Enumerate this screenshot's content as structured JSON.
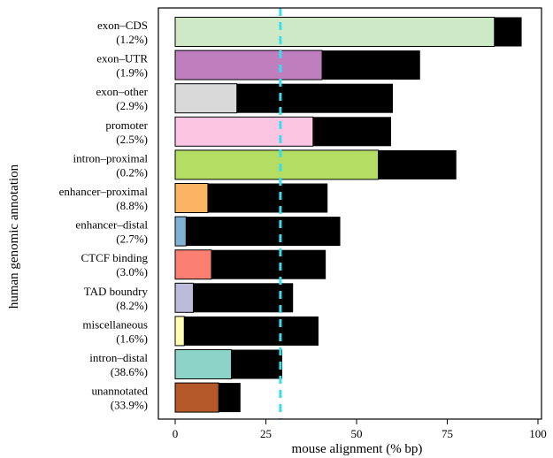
{
  "chart_data": {
    "type": "bar",
    "orientation": "horizontal",
    "xlabel": "mouse alignment (% bp)",
    "ylabel": "human genomic annotation",
    "xlim": [
      0,
      100
    ],
    "xticks": [
      "0",
      "25",
      "50",
      "75",
      "100"
    ],
    "reference_line": {
      "x": 29,
      "style": "dashed",
      "color": "#33e0f0"
    },
    "categories": [
      {
        "name": "exon–CDS",
        "share": "(1.2%)",
        "value": 88,
        "total": 95.5,
        "color": "#cde9c5"
      },
      {
        "name": "exon–UTR",
        "share": "(1.9%)",
        "value": 40.5,
        "total": 67.5,
        "color": "#bf7fbf"
      },
      {
        "name": "exon–other",
        "share": "(2.9%)",
        "value": 17,
        "total": 60,
        "color": "#d9d9d9"
      },
      {
        "name": "promoter",
        "share": "(2.5%)",
        "value": 38,
        "total": 59.5,
        "color": "#fcc6e3"
      },
      {
        "name": "intron–proximal",
        "share": "(0.2%)",
        "value": 56,
        "total": 77.5,
        "color": "#b3dd63"
      },
      {
        "name": "enhancer–proximal",
        "share": "(8.8%)",
        "value": 9,
        "total": 42,
        "color": "#fbb463"
      },
      {
        "name": "enhancer–distal",
        "share": "(2.7%)",
        "value": 3,
        "total": 45.5,
        "color": "#80b1d3"
      },
      {
        "name": "CTCF binding",
        "share": "(3.0%)",
        "value": 10,
        "total": 41.5,
        "color": "#fb8072"
      },
      {
        "name": "TAD boundry",
        "share": "(8.2%)",
        "value": 5,
        "total": 32.5,
        "color": "#bebada"
      },
      {
        "name": "miscellaneous",
        "share": "(1.6%)",
        "value": 2.5,
        "total": 39.5,
        "color": "#ffffb3"
      },
      {
        "name": "intron–distal",
        "share": "(38.6%)",
        "value": 15.5,
        "total": 29.5,
        "color": "#8dd3c7"
      },
      {
        "name": "unannotated",
        "share": "(33.9%)",
        "value": 12,
        "total": 18,
        "color": "#b5592a"
      }
    ]
  }
}
